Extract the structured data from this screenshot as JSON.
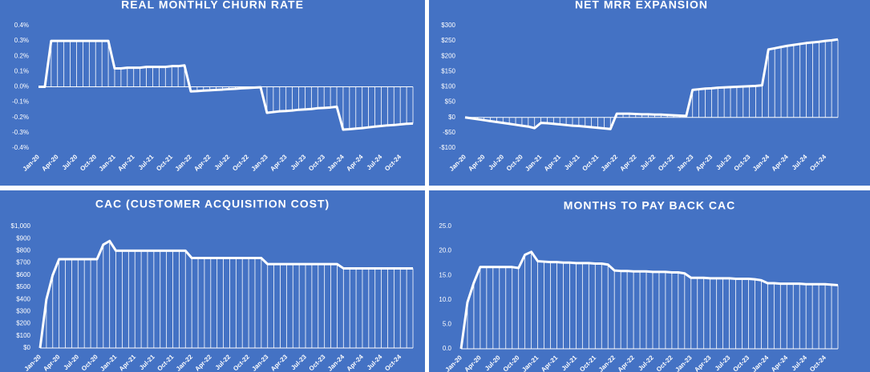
{
  "chart_data": [
    {
      "type": "line",
      "title": "REAL MONTHLY CHURN RATE",
      "categories": [
        "Jan-20",
        null,
        null,
        "Apr-20",
        null,
        null,
        "Jul-20",
        null,
        null,
        "Oct-20",
        null,
        null,
        "Jan-21",
        null,
        null,
        "Apr-21",
        null,
        null,
        "Jul-21",
        null,
        null,
        "Oct-21",
        null,
        null,
        "Jan-22",
        null,
        null,
        "Apr-22",
        null,
        null,
        "Jul-22",
        null,
        null,
        "Oct-22",
        null,
        null,
        "Jan-23",
        null,
        null,
        "Apr-23",
        null,
        null,
        "Jul-23",
        null,
        null,
        "Oct-23",
        null,
        null,
        "Jan-24",
        null,
        null,
        "Apr-24",
        null,
        null,
        "Jul-24",
        null,
        null,
        "Oct-24",
        null,
        null
      ],
      "series": [
        {
          "color": "#ffffff",
          "values": [
            0,
            0,
            0.3,
            0.3,
            0.3,
            0.3,
            0.3,
            0.3,
            0.3,
            0.3,
            0.3,
            0.3,
            0.12,
            0.12,
            0.125,
            0.125,
            0.125,
            0.13,
            0.13,
            0.13,
            0.13,
            0.135,
            0.135,
            0.14,
            -0.03,
            -0.028,
            -0.025,
            -0.023,
            -0.02,
            -0.018,
            -0.015,
            -0.013,
            -0.01,
            -0.008,
            -0.005,
            -0.003,
            -0.17,
            -0.165,
            -0.16,
            -0.158,
            -0.155,
            -0.15,
            -0.148,
            -0.145,
            -0.14,
            -0.138,
            -0.135,
            -0.13,
            -0.28,
            -0.277,
            -0.273,
            -0.27,
            -0.265,
            -0.26,
            -0.256,
            -0.252,
            -0.25,
            -0.246,
            -0.242,
            -0.24
          ]
        }
      ],
      "ylim": [
        -0.4,
        0.4
      ],
      "yticks": [
        {
          "value": -0.4,
          "label": "-0.4%"
        },
        {
          "value": -0.3,
          "label": "-0.3%"
        },
        {
          "value": -0.2,
          "label": "-0.2%"
        },
        {
          "value": -0.1,
          "label": "-0.1%"
        },
        {
          "value": 0,
          "label": "0.0%"
        },
        {
          "value": 0.1,
          "label": "0.1%"
        },
        {
          "value": 0.2,
          "label": "0.2%"
        },
        {
          "value": 0.3,
          "label": "0.3%"
        },
        {
          "value": 0.4,
          "label": "0.4%"
        }
      ]
    },
    {
      "type": "line",
      "title": "NET MRR EXPANSION",
      "categories": [
        "Jan-20",
        null,
        null,
        "Apr-20",
        null,
        null,
        "Jul-20",
        null,
        null,
        "Oct-20",
        null,
        null,
        "Jan-21",
        null,
        null,
        "Apr-21",
        null,
        null,
        "Jul-21",
        null,
        null,
        "Oct-21",
        null,
        null,
        "Jan-22",
        null,
        null,
        "Apr-22",
        null,
        null,
        "Jul-22",
        null,
        null,
        "Oct-22",
        null,
        null,
        "Jan-23",
        null,
        null,
        "Apr-23",
        null,
        null,
        "Jul-23",
        null,
        null,
        "Oct-23",
        null,
        null,
        "Jan-24",
        null,
        null,
        "Apr-24",
        null,
        null,
        "Jul-24",
        null,
        null,
        "Oct-24",
        null,
        null
      ],
      "series": [
        {
          "color": "#ffffff",
          "values": [
            0,
            -3,
            -6,
            -9,
            -12,
            -15,
            -18,
            -21,
            -24,
            -27,
            -30,
            -35,
            -18,
            -19,
            -21,
            -23,
            -25,
            -27,
            -28,
            -30,
            -32,
            -34,
            -36,
            -38,
            12,
            12,
            12,
            11,
            10,
            10,
            9,
            9,
            8,
            7,
            6,
            5,
            90,
            92,
            94,
            95,
            97,
            98,
            99,
            100,
            101,
            102,
            103,
            105,
            222,
            226,
            230,
            234,
            237,
            240,
            243,
            245,
            247,
            250,
            252,
            255
          ]
        }
      ],
      "ylim": [
        -100,
        300
      ],
      "yticks": [
        {
          "value": -100,
          "label": "-$100"
        },
        {
          "value": -50,
          "label": "-$50"
        },
        {
          "value": 0,
          "label": "$0"
        },
        {
          "value": 50,
          "label": "$50"
        },
        {
          "value": 100,
          "label": "$100"
        },
        {
          "value": 150,
          "label": "$150"
        },
        {
          "value": 200,
          "label": "$200"
        },
        {
          "value": 250,
          "label": "$250"
        },
        {
          "value": 300,
          "label": "$300"
        }
      ]
    },
    {
      "type": "line",
      "title": "CAC (CUSTOMER ACQUISITION COST)",
      "categories": [
        "Jan-20",
        null,
        null,
        "Apr-20",
        null,
        null,
        "Jul-20",
        null,
        null,
        "Oct-20",
        null,
        null,
        "Jan-21",
        null,
        null,
        "Apr-21",
        null,
        null,
        "Jul-21",
        null,
        null,
        "Oct-21",
        null,
        null,
        "Jan-22",
        null,
        null,
        "Apr-22",
        null,
        null,
        "Jul-22",
        null,
        null,
        "Oct-22",
        null,
        null,
        "Jan-23",
        null,
        null,
        "Apr-23",
        null,
        null,
        "Jul-23",
        null,
        null,
        "Oct-23",
        null,
        null,
        "Jan-24",
        null,
        null,
        "Apr-24",
        null,
        null,
        "Jul-24",
        null,
        null,
        "Oct-24",
        null,
        null
      ],
      "series": [
        {
          "color": "#ffffff",
          "values": [
            0,
            400,
            600,
            730,
            730,
            730,
            730,
            730,
            730,
            730,
            850,
            880,
            800,
            800,
            800,
            800,
            800,
            800,
            800,
            800,
            800,
            800,
            800,
            800,
            740,
            740,
            740,
            740,
            740,
            740,
            740,
            740,
            740,
            740,
            740,
            740,
            690,
            690,
            690,
            690,
            690,
            690,
            690,
            690,
            690,
            690,
            690,
            690,
            655,
            655,
            655,
            655,
            655,
            655,
            655,
            655,
            655,
            655,
            655,
            655
          ]
        }
      ],
      "ylim": [
        0,
        1000
      ],
      "yticks": [
        {
          "value": 0,
          "label": "$0"
        },
        {
          "value": 100,
          "label": "$100"
        },
        {
          "value": 200,
          "label": "$200"
        },
        {
          "value": 300,
          "label": "$300"
        },
        {
          "value": 400,
          "label": "$400"
        },
        {
          "value": 500,
          "label": "$500"
        },
        {
          "value": 600,
          "label": "$600"
        },
        {
          "value": 700,
          "label": "$700"
        },
        {
          "value": 800,
          "label": "$800"
        },
        {
          "value": 900,
          "label": "$900"
        },
        {
          "value": 1000,
          "label": "$1,000"
        }
      ]
    },
    {
      "type": "line",
      "title": "MONTHS TO PAY BACK CAC",
      "categories": [
        "Jan-20",
        null,
        null,
        "Apr-20",
        null,
        null,
        "Jul-20",
        null,
        null,
        "Oct-20",
        null,
        null,
        "Jan-21",
        null,
        null,
        "Apr-21",
        null,
        null,
        "Jul-21",
        null,
        null,
        "Oct-21",
        null,
        null,
        "Jan-22",
        null,
        null,
        "Apr-22",
        null,
        null,
        "Jul-22",
        null,
        null,
        "Oct-22",
        null,
        null,
        "Jan-23",
        null,
        null,
        "Apr-23",
        null,
        null,
        "Jul-23",
        null,
        null,
        "Oct-23",
        null,
        null,
        "Jan-24",
        null,
        null,
        "Apr-24",
        null,
        null,
        "Jul-24",
        null,
        null,
        "Oct-24",
        null,
        null
      ],
      "series": [
        {
          "color": "#ffffff",
          "values": [
            0,
            9.5,
            13.5,
            16.7,
            16.7,
            16.7,
            16.7,
            16.7,
            16.7,
            16.5,
            19.2,
            19.8,
            17.9,
            17.8,
            17.7,
            17.7,
            17.6,
            17.6,
            17.5,
            17.5,
            17.5,
            17.4,
            17.4,
            17.2,
            16,
            15.9,
            15.9,
            15.8,
            15.8,
            15.8,
            15.7,
            15.7,
            15.7,
            15.6,
            15.6,
            15.4,
            14.5,
            14.5,
            14.5,
            14.4,
            14.4,
            14.4,
            14.4,
            14.3,
            14.3,
            14.3,
            14.2,
            14,
            13.4,
            13.4,
            13.3,
            13.3,
            13.3,
            13.3,
            13.2,
            13.2,
            13.2,
            13.2,
            13.1,
            13
          ]
        }
      ],
      "ylim": [
        0,
        25
      ],
      "yticks": [
        {
          "value": 0,
          "label": "0.0"
        },
        {
          "value": 5,
          "label": "5.0"
        },
        {
          "value": 10,
          "label": "10.0"
        },
        {
          "value": 15,
          "label": "15.0"
        },
        {
          "value": 20,
          "label": "20.0"
        },
        {
          "value": 25,
          "label": "25.0"
        }
      ]
    }
  ]
}
